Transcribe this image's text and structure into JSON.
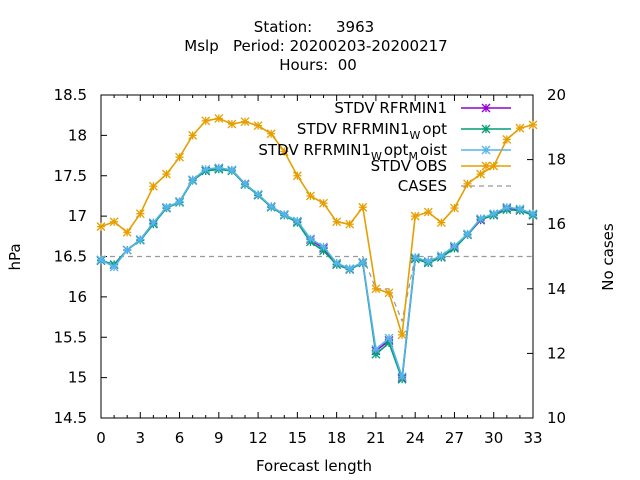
{
  "chart_data": {
    "type": "line",
    "title_lines": [
      "Station:     3963",
      "Mslp   Period: 20200203-20200217",
      "Hours:  00"
    ],
    "xlabel": "Forecast length",
    "ylabel": "hPa",
    "y2label": "No cases",
    "xlim": [
      0,
      33
    ],
    "ylim": [
      14.5,
      18.5
    ],
    "y2lim": [
      10,
      20
    ],
    "x_ticks": [
      "0",
      "3",
      "6",
      "9",
      "12",
      "15",
      "18",
      "21",
      "24",
      "27",
      "30",
      "33"
    ],
    "y_ticks": [
      "14.5",
      "15",
      "15.5",
      "16",
      "16.5",
      "17",
      "17.5",
      "18",
      "18.5"
    ],
    "y2_ticks": [
      "10",
      "12",
      "14",
      "16",
      "18",
      "20"
    ],
    "grid": false,
    "legend_position": "top-right",
    "x": [
      0,
      1,
      2,
      3,
      4,
      5,
      6,
      7,
      8,
      9,
      10,
      11,
      12,
      13,
      14,
      15,
      16,
      17,
      18,
      19,
      20,
      21,
      22,
      23,
      24,
      25,
      26,
      27,
      28,
      29,
      30,
      31,
      32,
      33
    ],
    "series": [
      {
        "name": "STDV RFRMIN1",
        "color": "#9400d3",
        "marker": "x-star",
        "axis": "left",
        "values": [
          16.45,
          16.4,
          16.58,
          16.71,
          16.91,
          17.1,
          17.18,
          17.45,
          17.56,
          17.59,
          17.57,
          17.4,
          17.26,
          17.12,
          17.02,
          16.93,
          16.71,
          16.6,
          16.4,
          16.34,
          16.42,
          15.33,
          15.46,
          15.0,
          16.48,
          16.43,
          16.49,
          16.62,
          16.77,
          16.95,
          17.02,
          17.1,
          17.07,
          17.02
        ]
      },
      {
        "name_parts": [
          "STDV RFRMIN1",
          "W",
          "opt"
        ],
        "color": "#009e73",
        "marker": "x-star",
        "axis": "left",
        "values": [
          16.45,
          16.4,
          16.58,
          16.7,
          16.9,
          17.1,
          17.17,
          17.44,
          17.56,
          17.58,
          17.56,
          17.39,
          17.26,
          17.11,
          17.01,
          16.92,
          16.68,
          16.57,
          16.4,
          16.34,
          16.42,
          15.29,
          15.43,
          14.98,
          16.47,
          16.42,
          16.49,
          16.6,
          16.77,
          16.96,
          17.01,
          17.08,
          17.07,
          17.01
        ]
      },
      {
        "name_parts": [
          "STDV RFRMIN1",
          "W",
          "opt",
          "M",
          "oist"
        ],
        "color": "#56b4e9",
        "marker": "x-star",
        "axis": "left",
        "values": [
          16.46,
          16.37,
          16.58,
          16.71,
          16.92,
          17.11,
          17.18,
          17.45,
          17.58,
          17.6,
          17.57,
          17.4,
          17.27,
          17.12,
          17.02,
          16.94,
          16.72,
          16.62,
          16.42,
          16.35,
          16.43,
          15.35,
          15.49,
          15.01,
          16.49,
          16.44,
          16.51,
          16.63,
          16.78,
          16.97,
          17.03,
          17.11,
          17.09,
          17.03
        ]
      },
      {
        "name": "STDV OBS",
        "color": "#e69f00",
        "marker": "x-star",
        "axis": "left",
        "values": [
          16.87,
          16.93,
          16.8,
          17.03,
          17.37,
          17.52,
          17.73,
          18.0,
          18.18,
          18.21,
          18.14,
          18.17,
          18.12,
          18.02,
          17.8,
          17.5,
          17.25,
          17.16,
          16.93,
          16.9,
          17.11,
          16.1,
          16.05,
          15.53,
          17.0,
          17.05,
          16.92,
          17.1,
          17.4,
          17.52,
          17.62,
          17.95,
          18.09,
          18.13
        ]
      },
      {
        "name": "CASES",
        "color": "#999999",
        "dash": true,
        "axis": "right",
        "values": [
          15,
          15,
          15,
          15,
          15,
          15,
          15,
          15,
          15,
          15,
          15,
          15,
          15,
          15,
          15,
          15,
          15,
          15,
          15,
          15,
          15,
          14,
          14,
          13,
          15,
          15,
          15,
          15,
          15,
          15,
          15,
          15,
          15,
          15
        ]
      }
    ]
  }
}
